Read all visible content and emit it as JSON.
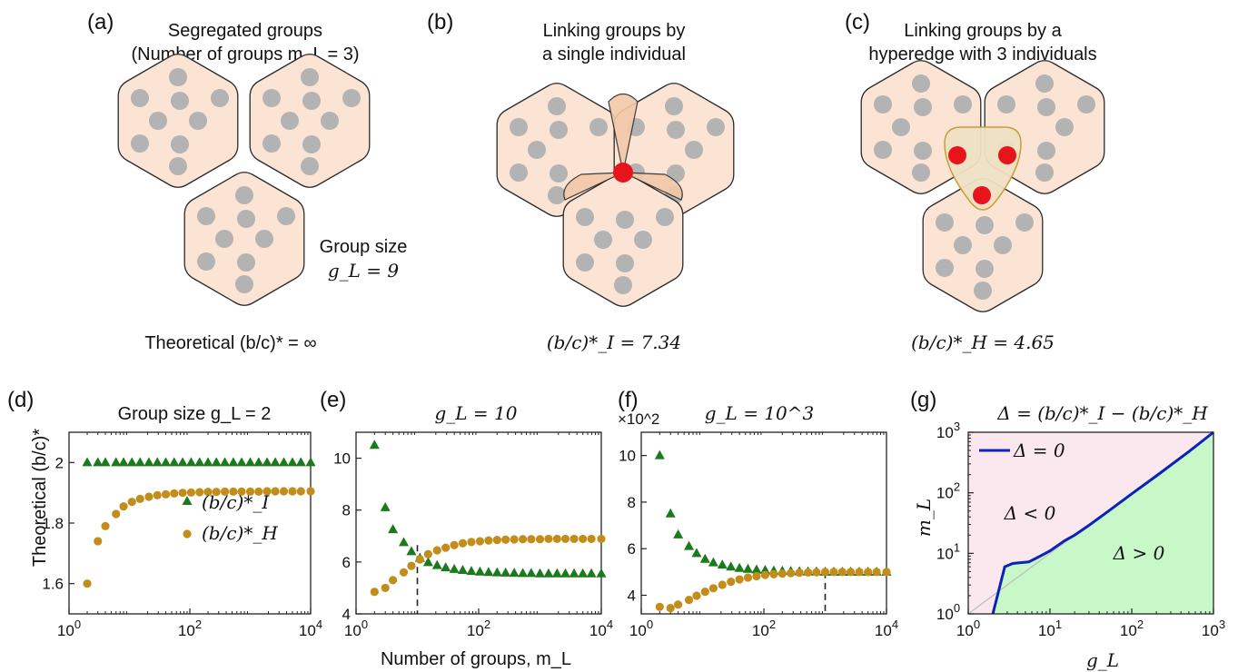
{
  "colors": {
    "hex_fill": "#fbe4d4",
    "hex_stroke": "#2b2b2b",
    "node_gray": "#b3b3b3",
    "node_red": "#e8141c",
    "overlap_fill": "#f3c9a8",
    "hyperedge_fill": "#efe1c4",
    "hyperedge_stroke": "#c99a2e",
    "series_I": "#1b7a1b",
    "series_H": "#c28d1a",
    "zero_line": "#0b24b8",
    "region_neg": "#fbe8ee",
    "region_pos": "#c8f7c8"
  },
  "top_panels": [
    {
      "label": "(a)",
      "title_lines": [
        "Segregated groups",
        "(Number of groups m_L = 3)"
      ],
      "annotation_lines": [
        "Group size",
        "g_L = 9"
      ],
      "result": "Theoretical (b/c)* = ∞"
    },
    {
      "label": "(b)",
      "title_lines": [
        "Linking groups by",
        "a single individual"
      ],
      "result": "(b/c)*_I = 7.34"
    },
    {
      "label": "(c)",
      "title_lines": [
        "Linking groups by a",
        "hyperedge with 3 individuals"
      ],
      "result": "(b/c)*_H = 4.65"
    }
  ],
  "chart_data": [
    {
      "panel": "(d)",
      "type": "scatter",
      "title": "Group size g_L = 2",
      "ylabel": "Theoretical (b/c)*",
      "xlabel": "",
      "x_scale": "log",
      "xlim": [
        1,
        10000
      ],
      "ylim": [
        1.5,
        2.1
      ],
      "x_ticks": [
        "10^0",
        "10^2",
        "10^4"
      ],
      "y_ticks": [
        "1.6",
        "1.8",
        "2"
      ],
      "legend": [
        "(b/c)*_I",
        "(b/c)*_H"
      ],
      "legend_position": "center-right",
      "series": [
        {
          "name": "(b/c)*_I",
          "marker": "triangle",
          "x": [
            2,
            3,
            4,
            6,
            8,
            11,
            15,
            21,
            29,
            40,
            55,
            76,
            105,
            145,
            200,
            275,
            380,
            525,
            720,
            1000,
            1380,
            1900,
            2600,
            3600,
            5000,
            6900,
            10000
          ],
          "y": [
            2,
            2,
            2,
            2,
            2,
            2,
            2,
            2,
            2,
            2,
            2,
            2,
            2,
            2,
            2,
            2,
            2,
            2,
            2,
            2,
            2,
            2,
            2,
            2,
            2,
            2,
            2
          ]
        },
        {
          "name": "(b/c)*_H",
          "marker": "circle",
          "x": [
            2,
            3,
            4,
            6,
            8,
            11,
            15,
            21,
            29,
            40,
            55,
            76,
            105,
            145,
            200,
            275,
            380,
            525,
            720,
            1000,
            1380,
            1900,
            2600,
            3600,
            5000,
            6900,
            10000
          ],
          "y": [
            1.6,
            1.74,
            1.79,
            1.83,
            1.855,
            1.87,
            1.88,
            1.887,
            1.892,
            1.895,
            1.898,
            1.9,
            1.901,
            1.902,
            1.903,
            1.903,
            1.904,
            1.904,
            1.904,
            1.904,
            1.904,
            1.905,
            1.905,
            1.905,
            1.905,
            1.905,
            1.905
          ]
        }
      ]
    },
    {
      "panel": "(e)",
      "type": "scatter",
      "title": "g_L = 10",
      "ylabel": "",
      "xlabel": "Number of groups, m_L",
      "x_scale": "log",
      "xlim": [
        1,
        10000
      ],
      "ylim": [
        4,
        11
      ],
      "x_ticks": [
        "10^0",
        "10^2",
        "10^4"
      ],
      "y_ticks": [
        "4",
        "6",
        "8",
        "10"
      ],
      "crossing_x": 10,
      "series": [
        {
          "name": "(b/c)*_I",
          "marker": "triangle",
          "x": [
            2,
            3,
            4,
            6,
            8,
            11,
            15,
            21,
            29,
            40,
            55,
            76,
            105,
            145,
            200,
            275,
            380,
            525,
            720,
            1000,
            1380,
            1900,
            2600,
            3600,
            5000,
            6900,
            10000
          ],
          "y": [
            10.5,
            8.1,
            7.25,
            6.75,
            6.4,
            6.15,
            5.98,
            5.87,
            5.78,
            5.72,
            5.68,
            5.64,
            5.62,
            5.6,
            5.59,
            5.58,
            5.57,
            5.56,
            5.56,
            5.55,
            5.55,
            5.55,
            5.55,
            5.55,
            5.55,
            5.55,
            5.55
          ]
        },
        {
          "name": "(b/c)*_H",
          "marker": "circle",
          "x": [
            2,
            3,
            4,
            6,
            8,
            11,
            15,
            21,
            29,
            40,
            55,
            76,
            105,
            145,
            200,
            275,
            380,
            525,
            720,
            1000,
            1380,
            1900,
            2600,
            3600,
            5000,
            6900,
            10000
          ],
          "y": [
            4.85,
            5.0,
            5.3,
            5.6,
            5.85,
            6.1,
            6.3,
            6.45,
            6.55,
            6.65,
            6.72,
            6.77,
            6.8,
            6.83,
            6.85,
            6.86,
            6.87,
            6.88,
            6.88,
            6.88,
            6.89,
            6.89,
            6.89,
            6.89,
            6.89,
            6.89,
            6.89
          ]
        }
      ]
    },
    {
      "panel": "(f)",
      "type": "scatter",
      "title": "g_L = 10^3",
      "ylabel": "",
      "xlabel": "",
      "y_multiplier": "×10^2",
      "x_scale": "log",
      "xlim": [
        1,
        10000
      ],
      "ylim": [
        3.2,
        11
      ],
      "x_ticks": [
        "10^0",
        "10^2",
        "10^4"
      ],
      "y_ticks": [
        "4",
        "6",
        "8",
        "10"
      ],
      "crossing_x": 1000,
      "series": [
        {
          "name": "(b/c)*_I",
          "marker": "triangle",
          "x": [
            2,
            3,
            4,
            6,
            8,
            11,
            15,
            21,
            29,
            40,
            55,
            76,
            105,
            145,
            200,
            275,
            380,
            525,
            720,
            1000,
            1380,
            1900,
            2600,
            3600,
            5000,
            6900,
            10000
          ],
          "y": [
            10.0,
            7.5,
            6.6,
            6.1,
            5.8,
            5.55,
            5.4,
            5.3,
            5.22,
            5.16,
            5.12,
            5.09,
            5.07,
            5.05,
            5.04,
            5.03,
            5.02,
            5.01,
            5.01,
            5.0,
            5.0,
            5.0,
            5.0,
            5.0,
            5.0,
            5.0,
            5.0
          ]
        },
        {
          "name": "(b/c)*_H",
          "marker": "circle",
          "x": [
            2,
            3,
            4,
            6,
            8,
            11,
            15,
            21,
            29,
            40,
            55,
            76,
            105,
            145,
            200,
            275,
            380,
            525,
            720,
            1000,
            1380,
            1900,
            2600,
            3600,
            5000,
            6900,
            10000
          ],
          "y": [
            3.5,
            3.45,
            3.6,
            3.8,
            3.98,
            4.15,
            4.3,
            4.45,
            4.58,
            4.68,
            4.76,
            4.82,
            4.87,
            4.9,
            4.93,
            4.95,
            4.97,
            4.98,
            4.99,
            5.0,
            5.0,
            5.0,
            5.0,
            5.0,
            5.0,
            5.0,
            5.0
          ]
        }
      ]
    },
    {
      "panel": "(g)",
      "type": "area",
      "title": "Δ = (b/c)*_I − (b/c)*_H",
      "xlabel": "g_L",
      "ylabel": "m_L",
      "x_scale": "log",
      "y_scale": "log",
      "xlim": [
        1,
        1000
      ],
      "ylim": [
        1,
        1000
      ],
      "x_ticks": [
        "10^0",
        "10^1",
        "10^2",
        "10^3"
      ],
      "y_ticks": [
        "10^0",
        "10^1",
        "10^2",
        "10^3"
      ],
      "legend": [
        "Δ = 0"
      ],
      "legend_position": "top-left",
      "region_labels": [
        "Δ < 0",
        "Δ > 0"
      ],
      "series": [
        {
          "name": "Δ = 0",
          "x": [
            2,
            2.8,
            3.5,
            4.2,
            5.5,
            7,
            10,
            15,
            20,
            30,
            50,
            100,
            200,
            500,
            1000
          ],
          "y": [
            1,
            6,
            6.8,
            7,
            7.2,
            8.5,
            11,
            16,
            20,
            29,
            48,
            96,
            190,
            480,
            1000
          ]
        },
        {
          "name": "",
          "style": "reference",
          "x": [
            1,
            1000
          ],
          "y": [
            1,
            1000
          ]
        }
      ]
    }
  ]
}
